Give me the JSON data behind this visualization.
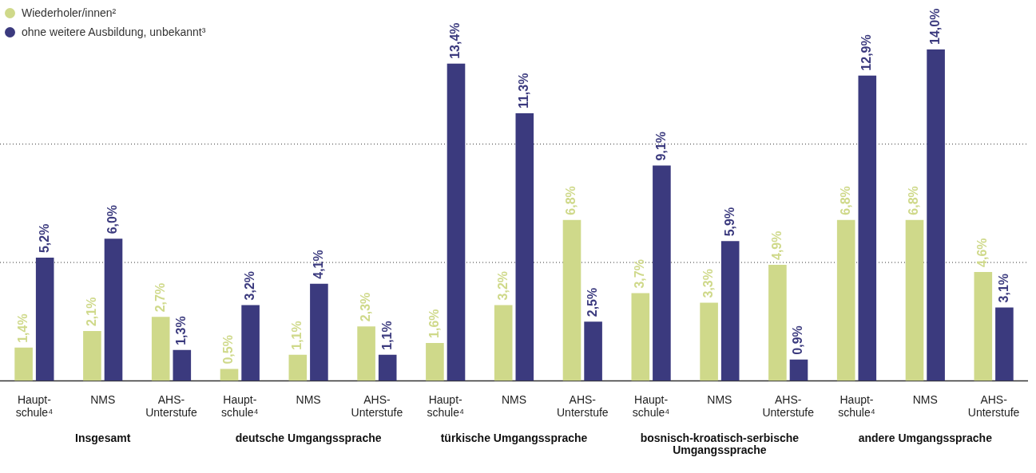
{
  "chart_data": {
    "type": "bar",
    "categories": [
      "Haupt-\nschule⁴",
      "NMS",
      "AHS-\nUnterstufe",
      "Haupt-\nschule⁴",
      "NMS",
      "AHS-\nUnterstufe",
      "Haupt-\nschule⁴",
      "NMS",
      "AHS-\nUnterstufe",
      "Haupt-\nschule⁴",
      "NMS",
      "AHS-\nUnterstufe",
      "Haupt-\nschule⁴",
      "NMS",
      "AHS-\nUnterstufe"
    ],
    "series": [
      {
        "name": "Wiederholer/innen²",
        "color": "#cfd98a",
        "values": [
          1.4,
          2.1,
          2.7,
          0.5,
          1.1,
          2.3,
          1.6,
          3.2,
          6.8,
          3.7,
          3.3,
          4.9,
          6.8,
          6.8,
          4.6
        ],
        "value_labels": [
          "1,4%",
          "2,1%",
          "2,7%",
          "0,5%",
          "1,1%",
          "2,3%",
          "1,6%",
          "3,2%",
          "6,8%",
          "3,7%",
          "3,3%",
          "4,9%",
          "6,8%",
          "6,8%",
          "4,6%"
        ]
      },
      {
        "name": "ohne weitere Ausbildung, unbekannt³",
        "color": "#3b3a7e",
        "values": [
          5.2,
          6.0,
          1.3,
          3.2,
          4.1,
          1.1,
          13.4,
          11.3,
          2.5,
          9.1,
          5.9,
          0.9,
          12.9,
          14.0,
          3.1
        ],
        "value_labels": [
          "5,2%",
          "6,0%",
          "1,3%",
          "3,2%",
          "4,1%",
          "1,1%",
          "13,4%",
          "11,3%",
          "2,5%",
          "9,1%",
          "5,9%",
          "0,9%",
          "12,9%",
          "14,0%",
          "3,1%"
        ]
      }
    ],
    "annotations": [
      "Insgesamt",
      "deutsche Umgangssprache",
      "türkische Umgangssprache",
      "bosnisch-kroatisch-serbische Umgangssprache",
      "andere Umgangssprache"
    ],
    "ref_lines": [
      {
        "axis": "y",
        "value": 5,
        "color": "#333333",
        "line_style": "dotted"
      },
      {
        "axis": "y",
        "value": 10,
        "color": "#333333",
        "line_style": "dotted"
      }
    ],
    "legend": "top left",
    "tick_labels": "x"
  }
}
